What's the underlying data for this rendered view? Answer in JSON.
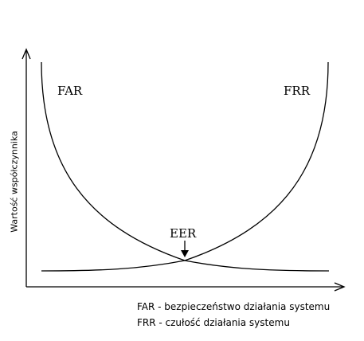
{
  "y_axis_label": "Wartość współczynnika",
  "curves": {
    "far_label": "FAR",
    "frr_label": "FRR",
    "eer_label": "EER"
  },
  "legend": [
    "FAR - bezpieczeństwo działania systemu",
    "FRR - czułość działania systemu"
  ],
  "colors": {
    "line": "#000000",
    "background": "#ffffff"
  }
}
